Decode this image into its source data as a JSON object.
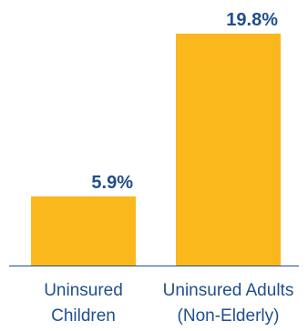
{
  "chart_data": {
    "type": "bar",
    "categories": [
      [
        "Uninsured",
        "Children"
      ],
      [
        "Uninsured Adults",
        "(Non-Elderly)"
      ]
    ],
    "values": [
      5.9,
      19.8
    ],
    "value_labels": [
      "5.9%",
      "19.8%"
    ],
    "ylim": [
      0,
      19.8
    ],
    "grid": false,
    "colors": {
      "bar": "#FBB81C",
      "value_text": "#1F4F8C",
      "category_text": "#1F4F8C",
      "axis": "#1F4F8C"
    }
  }
}
